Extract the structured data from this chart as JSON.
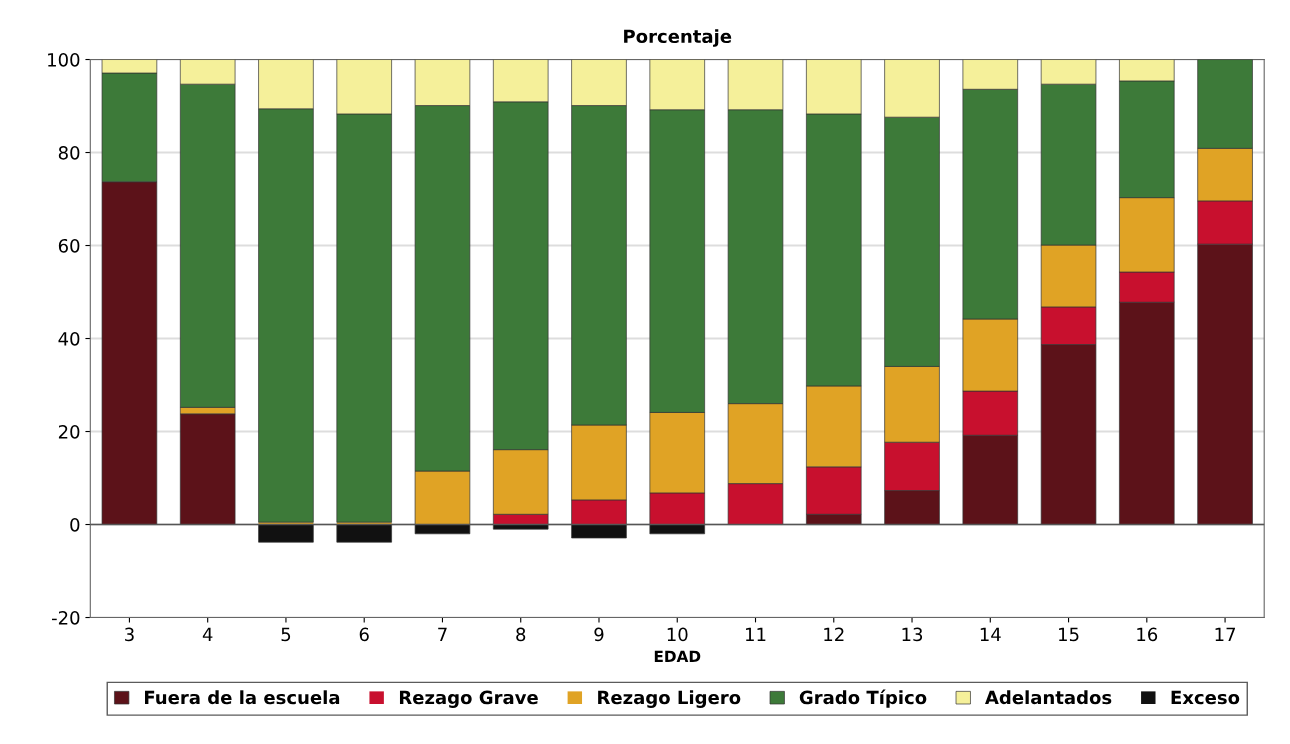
{
  "chart_data": {
    "type": "bar",
    "stacked": true,
    "title": "Porcentaje",
    "xlabel": "EDAD",
    "categories": [
      "3",
      "4",
      "5",
      "6",
      "7",
      "8",
      "9",
      "10",
      "11",
      "12",
      "13",
      "14",
      "15",
      "16",
      "17"
    ],
    "series": [
      {
        "name": "Fuera de la escuela",
        "color": "#5c1219",
        "values": [
          73.7,
          23.8,
          0,
          0,
          0,
          0,
          0,
          0,
          0,
          2.2,
          7.3,
          19.2,
          38.7,
          47.8,
          60.3
        ]
      },
      {
        "name": "Rezago Grave",
        "color": "#c8102e",
        "values": [
          0,
          0,
          0,
          0,
          0,
          2.2,
          5.3,
          6.8,
          8.8,
          10.2,
          10.4,
          9.5,
          8.1,
          6.5,
          9.3
        ]
      },
      {
        "name": "Rezago Ligero",
        "color": "#e0a325",
        "values": [
          0,
          1.4,
          0.5,
          0.5,
          11.5,
          13.9,
          16.1,
          17.3,
          17.2,
          17.4,
          16.3,
          15.5,
          13.3,
          16.0,
          11.3
        ]
      },
      {
        "name": "Grado Típico",
        "color": "#3d7a39",
        "values": [
          23.4,
          69.5,
          88.9,
          87.8,
          78.6,
          74.8,
          68.7,
          65.1,
          63.2,
          58.5,
          53.6,
          49.4,
          34.6,
          25.1,
          19.1
        ]
      },
      {
        "name": "Adelantados",
        "color": "#f5f09a",
        "values": [
          2.9,
          5.3,
          10.6,
          11.7,
          9.9,
          9.1,
          9.9,
          10.8,
          10.8,
          11.7,
          12.4,
          6.4,
          5.3,
          4.6,
          0
        ]
      },
      {
        "name": "Exceso",
        "color": "#111111",
        "values": [
          0,
          0,
          -3.8,
          -3.8,
          -2.0,
          -1.0,
          -2.9,
          -2.0,
          0,
          0,
          0,
          0,
          0,
          0,
          0
        ]
      }
    ],
    "ylim": [
      -20,
      100
    ],
    "yticks": [
      -20,
      0,
      20,
      40,
      60,
      80,
      100
    ],
    "grid": "y",
    "legend": "bottom"
  }
}
